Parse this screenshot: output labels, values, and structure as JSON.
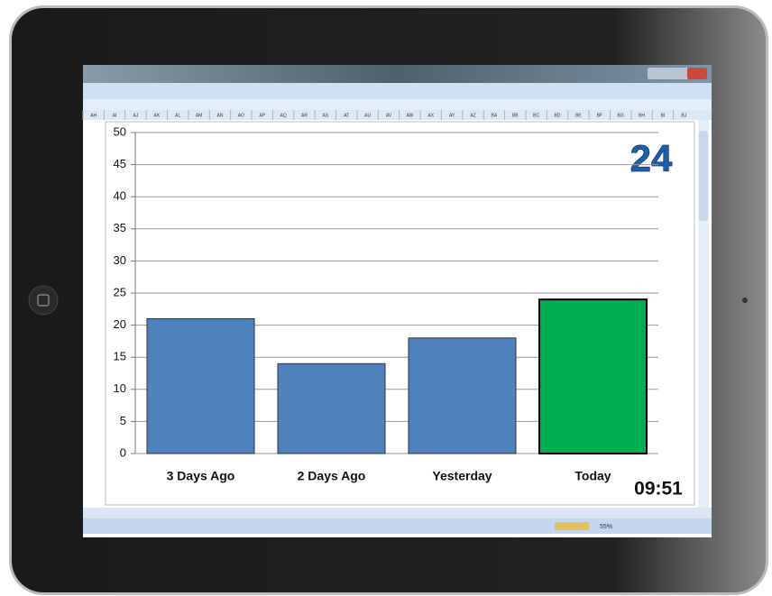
{
  "spreadsheet": {
    "columns": [
      "AH",
      "AI",
      "AJ",
      "AK",
      "AL",
      "AM",
      "AN",
      "AO",
      "AP",
      "AQ",
      "AR",
      "AS",
      "AT",
      "AU",
      "AV",
      "AW",
      "AX",
      "AY",
      "AZ",
      "BA",
      "BB",
      "BC",
      "BD",
      "BE",
      "BF",
      "BG",
      "BH",
      "BI",
      "BJ"
    ],
    "zoom": "55%"
  },
  "chart_data": {
    "type": "bar",
    "categories": [
      "3 Days Ago",
      "2 Days Ago",
      "Yesterday",
      "Today"
    ],
    "values": [
      21,
      14,
      18,
      24
    ],
    "colors": [
      "#4f81bd",
      "#4f81bd",
      "#4f81bd",
      "#00b050"
    ],
    "ylim": [
      0,
      50
    ],
    "yticks": [
      0,
      5,
      10,
      15,
      20,
      25,
      30,
      35,
      40,
      45,
      50
    ],
    "grid": true,
    "annotations": [
      "24",
      "09:51"
    ]
  }
}
